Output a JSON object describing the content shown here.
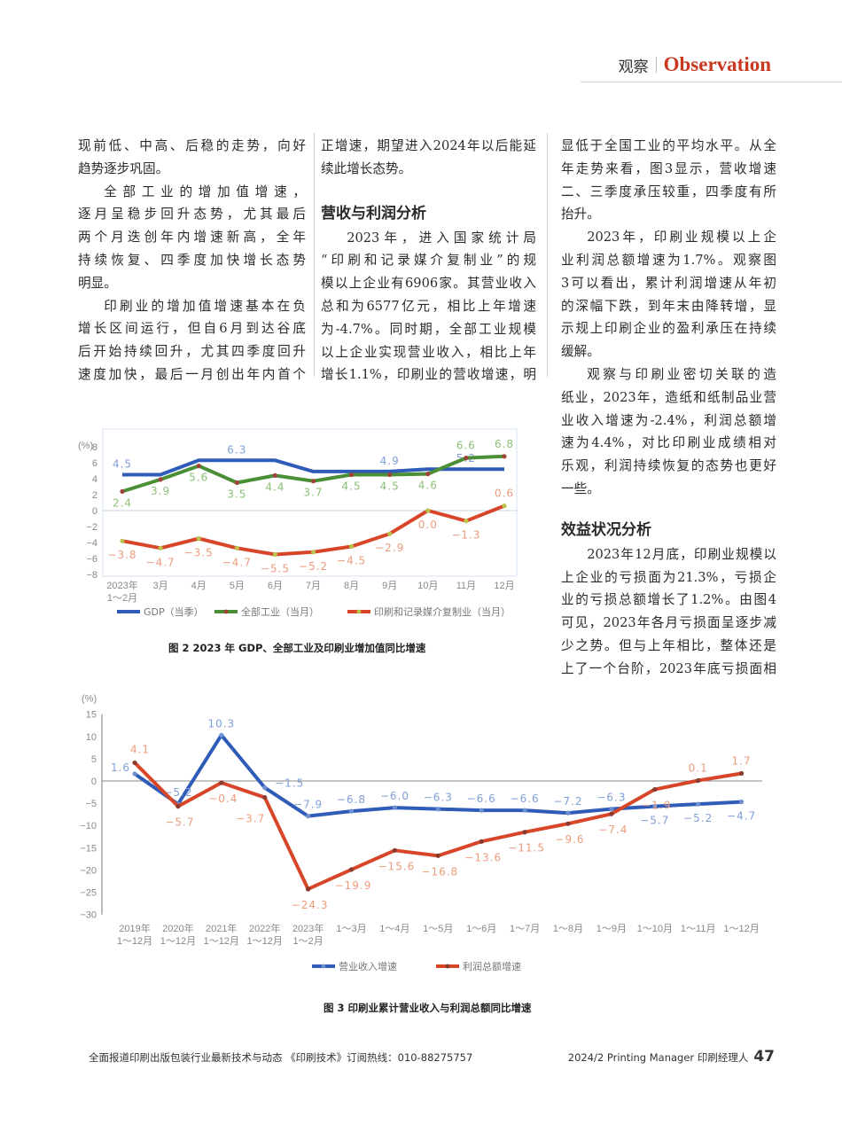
{
  "header": {
    "section_cn": "观察",
    "section_en": "Observation"
  },
  "columns": [
    {
      "blocks": [
        {
          "lines": [
            "现前低、中高、后稳的走势，向好",
            "趋势逐步巩固。"
          ]
        },
        {
          "lines": [
            "全部工业的增加值增速，",
            "逐月呈稳步回升态势，尤其最后",
            "两个月迭创年内增速新高，全年",
            "持续恢复、四季度加快增长态势",
            "明显。"
          ]
        },
        {
          "lines": [
            "印刷业的增加值增速基本在负",
            "增长区间运行，但自6月到达谷底",
            "后开始持续回升，尤其四季度回升",
            "速度加快，最后一月创出年内首个"
          ]
        }
      ]
    },
    {
      "blocks": [
        {
          "lines": [
            "正增速，期望进入2024年以后能延",
            "续此增长态势。"
          ]
        },
        {
          "heading": "营收与利润分析"
        },
        {
          "lines": [
            "2023年，进入国家统计局",
            "“印刷和记录媒介复制业”的规",
            "模以上企业有6906家。其营业收入",
            "总和为6577亿元，相比上年增速",
            "为-4.7%。同时期，全部工业规模",
            "以上企业实现营业收入，相比上年",
            "增长1.1%，印刷业的营收增速，明"
          ]
        }
      ]
    },
    {
      "blocks": [
        {
          "lines": [
            "显低于全国工业的平均水平。从全",
            "年走势来看，图3显示，营收增速",
            "二、三季度承压较重，四季度有所",
            "抬升。"
          ]
        },
        {
          "lines": [
            "2023年，印刷业规模以上企",
            "业利润总额增速为1.7%。观察图",
            "3可以看出，累计利润增速从年初",
            "的深幅下跌，到年末由降转增，显",
            "示规上印刷企业的盈利承压在持续",
            "缓解。"
          ]
        },
        {
          "lines": [
            "观察与印刷业密切关联的造",
            "纸业，2023年，造纸和纸制品业营",
            "业收入增速为-2.4%，利润总额增",
            "速为4.4%，对比印刷业成绩相对",
            "乐观，利润持续恢复的态势也更好",
            "一些。"
          ]
        },
        {
          "heading": "效益状况分析"
        },
        {
          "lines": [
            "2023年12月底，印刷业规模以",
            "上企业的亏损面为21.3%，亏损企",
            "业的亏损总额增长了1.2%。由图4",
            "可见，2023年各月亏损面呈逐步减",
            "少之势。但与上年相比，整体还是",
            "上了一个台阶，2023年底亏损面相"
          ]
        }
      ]
    }
  ],
  "chart_data": [
    {
      "type": "line",
      "title": "图 2 2023 年 GDP、全部工业及印刷业增加值同比增速",
      "ylabel": "(%)",
      "ylim": [
        -8,
        8
      ],
      "yticks": [
        "8",
        "6",
        "4",
        "2",
        "0",
        "−2",
        "−4",
        "−6",
        "−8"
      ],
      "categories": [
        "2023年|1～2月",
        "3月",
        "4月",
        "5月",
        "6月",
        "7月",
        "8月",
        "9月",
        "10月",
        "11月",
        "12月"
      ],
      "legend": "bottom",
      "series": [
        {
          "name": "GDP（当季）",
          "color": "#2e5cb8",
          "values": [
            4.5,
            4.5,
            6.3,
            6.3,
            6.3,
            4.9,
            4.9,
            4.9,
            5.2,
            5.2,
            5.2
          ],
          "labels": [
            "4.5",
            "",
            "",
            "6.3",
            "",
            "",
            "",
            "4.9",
            "",
            "5.2",
            ""
          ]
        },
        {
          "name": "全部工业（当月）",
          "color": "#4a8f35",
          "values": [
            2.4,
            3.9,
            5.6,
            3.5,
            4.4,
            3.7,
            4.5,
            4.5,
            4.6,
            6.6,
            6.8
          ],
          "labels": [
            "2.4",
            "3.9",
            "5.6",
            "3.5",
            "4.4",
            "3.7",
            "4.5",
            "4.5",
            "4.6",
            "6.6",
            "6.8"
          ]
        },
        {
          "name": "印刷和记录媒介复制业（当月）",
          "color": "#d8462a",
          "values": [
            -3.8,
            -4.7,
            -3.5,
            -4.7,
            -5.5,
            -5.2,
            -4.5,
            -2.9,
            0.0,
            -1.3,
            0.6
          ],
          "labels": [
            "−3.8",
            "−4.7",
            "−3.5",
            "−4.7",
            "−5.5",
            "−5.2",
            "−4.5",
            "−2.9",
            "0.0",
            "−1.3",
            "0.6"
          ]
        }
      ]
    },
    {
      "type": "line",
      "title": "图 3 印刷业累计营业收入与利润总额同比增速",
      "ylabel": "(%)",
      "ylim": [
        -30,
        15
      ],
      "yticks": [
        "15",
        "10",
        "5",
        "0",
        "−5",
        "−10",
        "−15",
        "−20",
        "−25",
        "−30"
      ],
      "categories": [
        "2019年|1～12月",
        "2020年|1～12月",
        "2021年|1～12月",
        "2022年|1～12月",
        "2023年|1～2月",
        "1～3月",
        "1～4月",
        "1～5月",
        "1～6月",
        "1～7月",
        "1～8月",
        "1～9月",
        "1～10月",
        "1～11月",
        "1～12月"
      ],
      "legend": "bottom",
      "series": [
        {
          "name": "营业收入增速",
          "color": "#2e5cb8",
          "values": [
            1.6,
            -5.2,
            10.3,
            -1.5,
            -7.9,
            -6.8,
            -6.0,
            -6.3,
            -6.6,
            -6.6,
            -7.2,
            -6.3,
            -5.7,
            -5.2,
            -4.7
          ],
          "labels": [
            "1.6",
            "−5.2",
            "10.3",
            "−1.5",
            "−7.9",
            "−6.8",
            "−6.0",
            "−6.3",
            "−6.6",
            "−6.6",
            "−7.2",
            "−6.3",
            "−5.7",
            "−5.2",
            "−4.7"
          ]
        },
        {
          "name": "利润总额增速",
          "color": "#d8462a",
          "values": [
            4.1,
            -5.7,
            -0.4,
            -3.7,
            -24.3,
            -19.9,
            -15.6,
            -16.8,
            -13.6,
            -11.5,
            -9.6,
            -7.4,
            -1.9,
            0.1,
            1.7
          ],
          "labels": [
            "4.1",
            "−5.7",
            "−0.4",
            "−3.7",
            "−24.3",
            "−19.9",
            "−15.6",
            "−16.8",
            "−13.6",
            "−11.5",
            "−9.6",
            "−7.4",
            "−1.9",
            "0.1",
            "1.7"
          ]
        }
      ]
    }
  ],
  "footer": {
    "left": "全面报道印刷出版包装行业最新技术与动态 《印刷技术》订阅热线：010-88275757",
    "right": "2024/2 Printing Manager 印刷经理人",
    "page": "47"
  }
}
